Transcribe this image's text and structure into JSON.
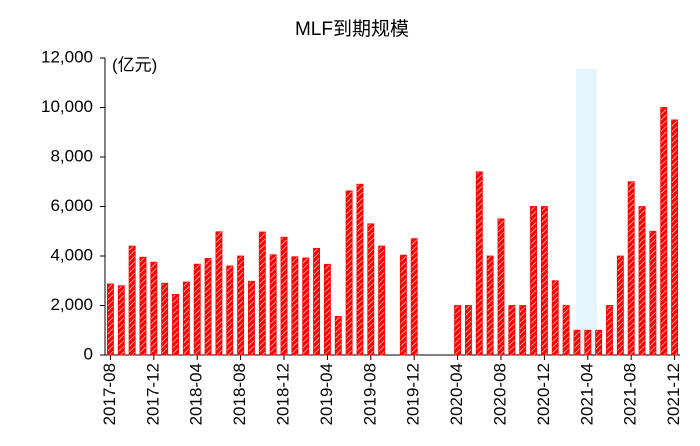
{
  "chart_data": {
    "type": "bar",
    "title": "MLF到期规模",
    "unit_label": "(亿元)",
    "categories": [
      "2017-08",
      null,
      null,
      null,
      "2017-12",
      null,
      null,
      null,
      "2018-04",
      null,
      null,
      null,
      "2018-08",
      null,
      null,
      null,
      "2018-12",
      null,
      null,
      null,
      "2019-04",
      null,
      null,
      null,
      "2019-08",
      null,
      null,
      null,
      "2019-12",
      null,
      null,
      null,
      "2020-04",
      null,
      null,
      null,
      "2020-08",
      null,
      null,
      null,
      "2020-12",
      null,
      null,
      null,
      "2021-04",
      null,
      null,
      null,
      "2021-08",
      null,
      null,
      null,
      "2021-12"
    ],
    "values": [
      2870,
      2800,
      4400,
      3950,
      3750,
      2900,
      2450,
      2950,
      3670,
      3900,
      4980,
      3600,
      4000,
      2980,
      4970,
      4050,
      4760,
      3970,
      3920,
      4310,
      3665,
      1560,
      6630,
      6900,
      5300,
      4400,
      null,
      4035,
      4700,
      null,
      null,
      null,
      2000,
      2000,
      7400,
      4000,
      5500,
      2000,
      2000,
      6000,
      6000,
      3000,
      2000,
      1000,
      1000,
      1000,
      2000,
      4000,
      7000,
      6000,
      5000,
      10000,
      9500
    ],
    "color": "#ff0000",
    "ylim": [
      0,
      12000
    ],
    "yticks": [
      0,
      {
        "value": 2000,
        "label": "2,000"
      },
      {
        "value": 4000,
        "label": "4,000"
      },
      {
        "value": 6000,
        "label": "6,000"
      },
      {
        "value": 8000,
        "label": "8,000"
      },
      {
        "value": 10000,
        "label": "10,000"
      },
      {
        "value": 12000,
        "label": "12,000"
      }
    ]
  }
}
